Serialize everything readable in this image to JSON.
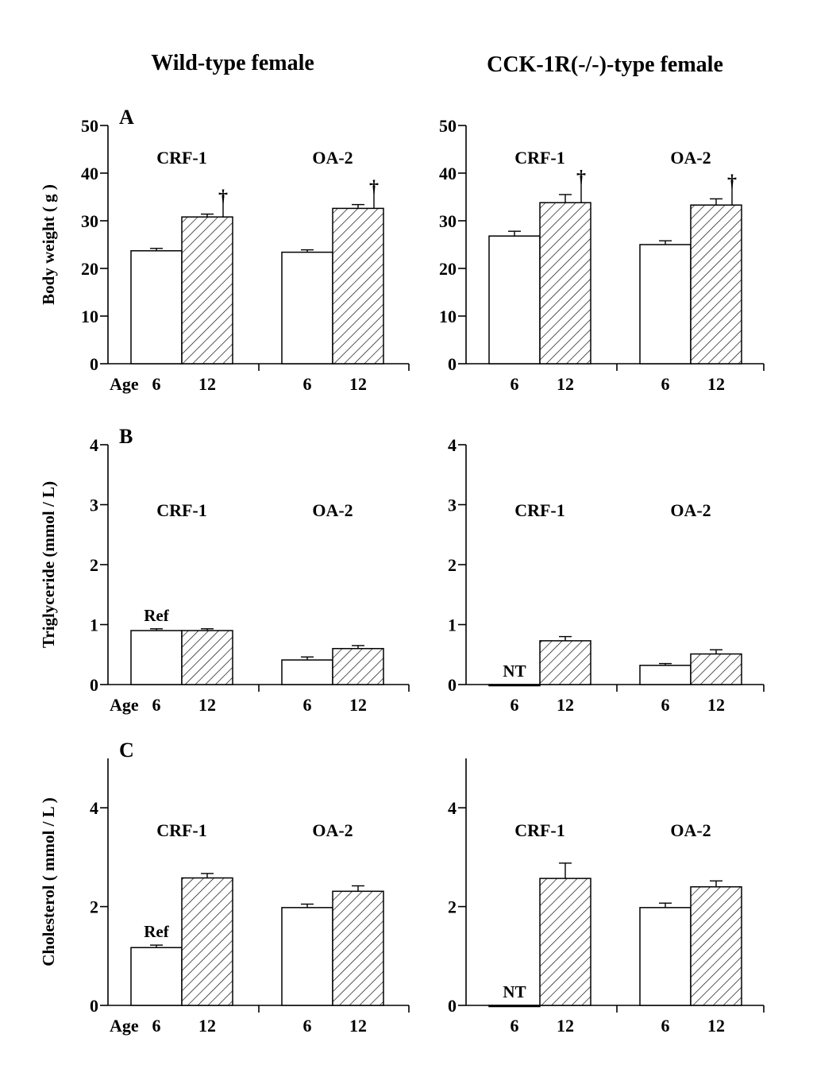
{
  "column_titles": [
    "Wild-type female",
    "CCK-1R(-/-)-type female"
  ],
  "x_prefix": "Age",
  "colors": {
    "young_fill": "#ffffff",
    "old_hatch": "#000000",
    "stroke": "#000000"
  },
  "chart_data": [
    {
      "type": "bar",
      "id": "A-wt",
      "row": 0,
      "col": 0,
      "panel_letter": "A",
      "ylabel": "Body weight ( g )",
      "ylim": [
        0,
        50
      ],
      "yticks": [
        0,
        10,
        20,
        30,
        40,
        50
      ],
      "show_prefix": true,
      "groups": [
        {
          "name": "CRF-1",
          "bars": [
            {
              "age": "6",
              "value": 23.7,
              "err": 0.5,
              "pattern": "open",
              "annotation": ""
            },
            {
              "age": "12",
              "value": 30.8,
              "err": 0.6,
              "pattern": "hatched",
              "annotation": "†"
            }
          ]
        },
        {
          "name": "OA-2",
          "bars": [
            {
              "age": "6",
              "value": 23.4,
              "err": 0.5,
              "pattern": "open",
              "annotation": ""
            },
            {
              "age": "12",
              "value": 32.6,
              "err": 0.8,
              "pattern": "hatched",
              "annotation": "†"
            }
          ]
        }
      ]
    },
    {
      "type": "bar",
      "id": "A-ko",
      "row": 0,
      "col": 1,
      "panel_letter": "",
      "ylabel": "",
      "ylim": [
        0,
        50
      ],
      "yticks": [
        0,
        10,
        20,
        30,
        40,
        50
      ],
      "show_prefix": false,
      "groups": [
        {
          "name": "CRF-1",
          "bars": [
            {
              "age": "6",
              "value": 26.8,
              "err": 1.0,
              "pattern": "open",
              "annotation": ""
            },
            {
              "age": "12",
              "value": 33.8,
              "err": 1.7,
              "pattern": "hatched",
              "annotation": "†"
            }
          ]
        },
        {
          "name": "OA-2",
          "bars": [
            {
              "age": "6",
              "value": 25.0,
              "err": 0.8,
              "pattern": "open",
              "annotation": ""
            },
            {
              "age": "12",
              "value": 33.3,
              "err": 1.3,
              "pattern": "hatched",
              "annotation": "†"
            }
          ]
        }
      ]
    },
    {
      "type": "bar",
      "id": "B-wt",
      "row": 1,
      "col": 0,
      "panel_letter": "B",
      "ylabel": "Triglyceride (mmol / L)",
      "ylim": [
        0,
        4
      ],
      "yticks": [
        0,
        1,
        2,
        3,
        4
      ],
      "show_prefix": true,
      "groups": [
        {
          "name": "CRF-1",
          "bars": [
            {
              "age": "6",
              "value": 0.9,
              "err": 0.03,
              "pattern": "open",
              "annotation": "Ref"
            },
            {
              "age": "12",
              "value": 0.9,
              "err": 0.03,
              "pattern": "hatched",
              "annotation": ""
            }
          ]
        },
        {
          "name": "OA-2",
          "bars": [
            {
              "age": "6",
              "value": 0.41,
              "err": 0.05,
              "pattern": "open",
              "annotation": ""
            },
            {
              "age": "12",
              "value": 0.6,
              "err": 0.05,
              "pattern": "hatched",
              "annotation": ""
            }
          ]
        }
      ]
    },
    {
      "type": "bar",
      "id": "B-ko",
      "row": 1,
      "col": 1,
      "panel_letter": "",
      "ylabel": "",
      "ylim": [
        0,
        4
      ],
      "yticks": [
        0,
        1,
        2,
        3,
        4
      ],
      "show_prefix": false,
      "groups": [
        {
          "name": "CRF-1",
          "bars": [
            {
              "age": "6",
              "value": 0,
              "err": 0,
              "pattern": "open",
              "annotation": "NT"
            },
            {
              "age": "12",
              "value": 0.73,
              "err": 0.07,
              "pattern": "hatched",
              "annotation": ""
            }
          ]
        },
        {
          "name": "OA-2",
          "bars": [
            {
              "age": "6",
              "value": 0.32,
              "err": 0.03,
              "pattern": "open",
              "annotation": ""
            },
            {
              "age": "12",
              "value": 0.51,
              "err": 0.07,
              "pattern": "hatched",
              "annotation": ""
            }
          ]
        }
      ]
    },
    {
      "type": "bar",
      "id": "C-wt",
      "row": 2,
      "col": 0,
      "panel_letter": "C",
      "ylabel": "Cholesterol ( mmol / L )",
      "ylim": [
        0,
        5
      ],
      "yticks": [
        0,
        2,
        4
      ],
      "show_prefix": true,
      "groups": [
        {
          "name": "CRF-1",
          "bars": [
            {
              "age": "6",
              "value": 1.17,
              "err": 0.05,
              "pattern": "open",
              "annotation": "Ref"
            },
            {
              "age": "12",
              "value": 2.58,
              "err": 0.09,
              "pattern": "hatched",
              "annotation": ""
            }
          ]
        },
        {
          "name": "OA-2",
          "bars": [
            {
              "age": "6",
              "value": 1.98,
              "err": 0.07,
              "pattern": "open",
              "annotation": ""
            },
            {
              "age": "12",
              "value": 2.31,
              "err": 0.11,
              "pattern": "hatched",
              "annotation": ""
            }
          ]
        }
      ]
    },
    {
      "type": "bar",
      "id": "C-ko",
      "row": 2,
      "col": 1,
      "panel_letter": "",
      "ylabel": "",
      "ylim": [
        0,
        5
      ],
      "yticks": [
        0,
        2,
        4
      ],
      "show_prefix": false,
      "groups": [
        {
          "name": "CRF-1",
          "bars": [
            {
              "age": "6",
              "value": 0,
              "err": 0,
              "pattern": "open",
              "annotation": "NT"
            },
            {
              "age": "12",
              "value": 2.57,
              "err": 0.31,
              "pattern": "hatched",
              "annotation": ""
            }
          ]
        },
        {
          "name": "OA-2",
          "bars": [
            {
              "age": "6",
              "value": 1.98,
              "err": 0.09,
              "pattern": "open",
              "annotation": ""
            },
            {
              "age": "12",
              "value": 2.4,
              "err": 0.12,
              "pattern": "hatched",
              "annotation": ""
            }
          ]
        }
      ]
    }
  ]
}
